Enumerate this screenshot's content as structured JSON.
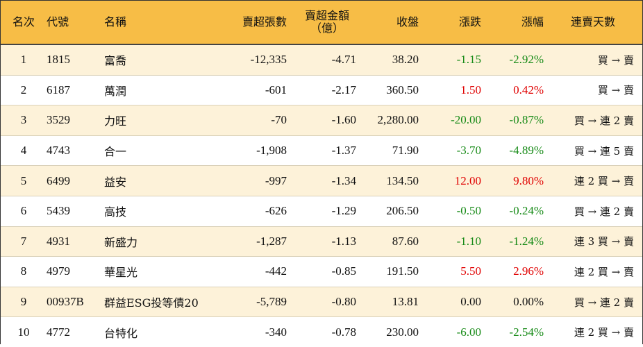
{
  "colors": {
    "header_bg": "#f7bd46",
    "row_alt_bg": "#fdf2d9",
    "up": "#e00000",
    "down": "#168a16"
  },
  "headers": {
    "rank": "名次",
    "code": "代號",
    "name": "名稱",
    "sell_lots": "賣超張數",
    "sell_amount_line1": "賣超金額",
    "sell_amount_line2": "（億）",
    "close": "收盤",
    "change": "漲跌",
    "change_pct": "漲幅",
    "streak": "連賣天數"
  },
  "rows": [
    {
      "rank": "1",
      "code": "1815",
      "name": "富喬",
      "sell_lots": "-12,335",
      "sell_amount": "-4.71",
      "close": "38.20",
      "change": "-1.15",
      "change_pct": "-2.92%",
      "dir": "neg",
      "streak": "買 → 賣"
    },
    {
      "rank": "2",
      "code": "6187",
      "name": "萬潤",
      "sell_lots": "-601",
      "sell_amount": "-2.17",
      "close": "360.50",
      "change": "1.50",
      "change_pct": "0.42%",
      "dir": "pos",
      "streak": "買 → 賣"
    },
    {
      "rank": "3",
      "code": "3529",
      "name": "力旺",
      "sell_lots": "-70",
      "sell_amount": "-1.60",
      "close": "2,280.00",
      "change": "-20.00",
      "change_pct": "-0.87%",
      "dir": "neg",
      "streak": "買 → 連 2 賣"
    },
    {
      "rank": "4",
      "code": "4743",
      "name": "合一",
      "sell_lots": "-1,908",
      "sell_amount": "-1.37",
      "close": "71.90",
      "change": "-3.70",
      "change_pct": "-4.89%",
      "dir": "neg",
      "streak": "買 → 連 5 賣"
    },
    {
      "rank": "5",
      "code": "6499",
      "name": "益安",
      "sell_lots": "-997",
      "sell_amount": "-1.34",
      "close": "134.50",
      "change": "12.00",
      "change_pct": "9.80%",
      "dir": "pos",
      "streak": "連 2 買 → 賣"
    },
    {
      "rank": "6",
      "code": "5439",
      "name": "高技",
      "sell_lots": "-626",
      "sell_amount": "-1.29",
      "close": "206.50",
      "change": "-0.50",
      "change_pct": "-0.24%",
      "dir": "neg",
      "streak": "買 → 連 2 賣"
    },
    {
      "rank": "7",
      "code": "4931",
      "name": "新盛力",
      "sell_lots": "-1,287",
      "sell_amount": "-1.13",
      "close": "87.60",
      "change": "-1.10",
      "change_pct": "-1.24%",
      "dir": "neg",
      "streak": "連 3 買 → 賣"
    },
    {
      "rank": "8",
      "code": "4979",
      "name": "華星光",
      "sell_lots": "-442",
      "sell_amount": "-0.85",
      "close": "191.50",
      "change": "5.50",
      "change_pct": "2.96%",
      "dir": "pos",
      "streak": "連 2 買 → 賣"
    },
    {
      "rank": "9",
      "code": "00937B",
      "name": "群益ESG投等債20",
      "sell_lots": "-5,789",
      "sell_amount": "-0.80",
      "close": "13.81",
      "change": "0.00",
      "change_pct": "0.00%",
      "dir": "zero",
      "streak": "買 → 連 2 賣"
    },
    {
      "rank": "10",
      "code": "4772",
      "name": "台特化",
      "sell_lots": "-340",
      "sell_amount": "-0.78",
      "close": "230.00",
      "change": "-6.00",
      "change_pct": "-2.54%",
      "dir": "neg",
      "streak": "連 2 買 → 賣"
    }
  ]
}
